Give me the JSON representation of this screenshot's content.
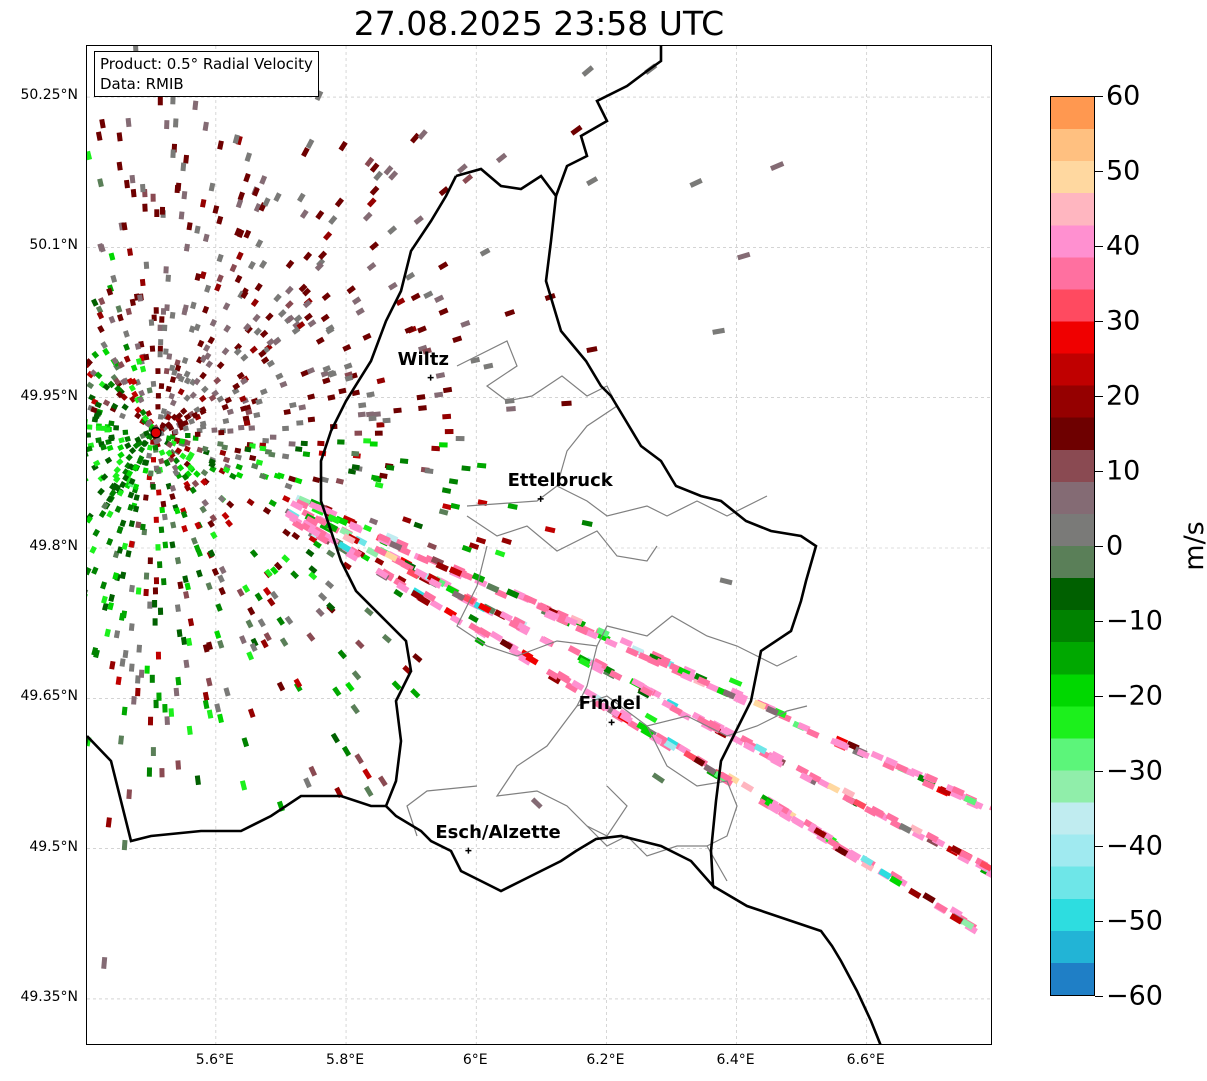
{
  "title": "27.08.2025 23:58 UTC",
  "info": {
    "product": "Product: 0.5° Radial Velocity",
    "data": "Data: RMIB"
  },
  "chart_data": {
    "type": "heatmap",
    "title": "27.08.2025 23:58 UTC",
    "xlim": [
      5.402,
      6.794
    ],
    "ylim": [
      49.303,
      50.301
    ],
    "lat_ticks": [
      "50.25°N",
      "50.1°N",
      "49.95°N",
      "49.8°N",
      "49.65°N",
      "49.5°N",
      "49.35°N"
    ],
    "lat_values": [
      50.25,
      50.1,
      49.95,
      49.8,
      49.65,
      49.5,
      49.35
    ],
    "lon_ticks": [
      "5.6°E",
      "5.8°E",
      "6°E",
      "6.2°E",
      "6.4°E",
      "6.6°E"
    ],
    "lon_values": [
      5.6,
      5.8,
      6.0,
      6.2,
      6.4,
      6.6
    ],
    "grid": true,
    "radar": {
      "lon": 5.508,
      "lat": 49.915
    },
    "cities": [
      {
        "name": "Wiltz",
        "lon": 5.93,
        "lat": 49.97
      },
      {
        "name": "Ettelbruck",
        "lon": 6.099,
        "lat": 49.849
      },
      {
        "name": "Findel",
        "lon": 6.208,
        "lat": 49.626
      },
      {
        "name": "Esch/Alzette",
        "lon": 5.988,
        "lat": 49.498
      }
    ],
    "colorbar": {
      "label": "m/s",
      "min": -60,
      "max": 60,
      "ticks": [
        "60",
        "50",
        "40",
        "30",
        "20",
        "10",
        "0",
        "−10",
        "−20",
        "−30",
        "−40",
        "−50",
        "−60"
      ],
      "tick_values": [
        60,
        50,
        40,
        30,
        20,
        10,
        0,
        -10,
        -20,
        -30,
        -40,
        -50,
        -60
      ],
      "colors": [
        "#1f7fc6",
        "#22b4d6",
        "#2ddde0",
        "#6ee6e8",
        "#a0eaf0",
        "#c0ecf0",
        "#90eeaa",
        "#5cf57a",
        "#1cf01c",
        "#00d800",
        "#00a800",
        "#008200",
        "#006000",
        "#5a7f58",
        "#7a7a78",
        "#846b74",
        "#8a4a52",
        "#6e0000",
        "#950000",
        "#c00000",
        "#f00000",
        "#ff4a60",
        "#ff70a0",
        "#ff90d0",
        "#ffb6c0",
        "#ffd8a0",
        "#ffc080",
        "#ff9850"
      ]
    }
  }
}
